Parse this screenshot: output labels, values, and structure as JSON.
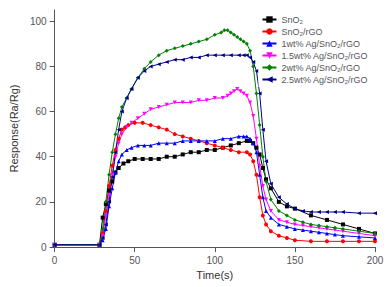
{
  "chart_data": {
    "type": "line",
    "xlabel": "Time(s)",
    "ylabel": "Response(Ra/Rg)",
    "xlim": [
      0,
      200
    ],
    "ylim": [
      0,
      105
    ],
    "xticks": [
      0,
      50,
      100,
      150,
      200
    ],
    "yticks": [
      0,
      20,
      40,
      60,
      80,
      100
    ],
    "grid": false,
    "legend": "upper right",
    "series": [
      {
        "name": "SnO₂",
        "color": "#000000",
        "marker": "square",
        "x": [
          0,
          28,
          30,
          32,
          34,
          36,
          38,
          40,
          43,
          46,
          50,
          55,
          60,
          65,
          70,
          75,
          80,
          85,
          90,
          95,
          100,
          105,
          110,
          115,
          120,
          122,
          124,
          126,
          128,
          130,
          132,
          135,
          140,
          145,
          150,
          160,
          170,
          180,
          190,
          200
        ],
        "values": [
          1,
          1,
          13,
          19,
          25,
          29,
          33,
          35,
          37,
          38,
          39,
          39,
          39,
          39,
          40,
          40,
          41,
          42,
          42,
          43,
          43,
          44,
          45,
          46,
          47,
          47,
          46,
          44,
          41,
          35,
          30,
          26,
          20,
          18,
          17,
          14,
          12,
          10,
          8,
          6
        ]
      },
      {
        "name": "SnO₂/rGO",
        "color": "#ff0000",
        "marker": "circle",
        "x": [
          0,
          28,
          30,
          32,
          34,
          36,
          38,
          40,
          42,
          44,
          46,
          50,
          55,
          60,
          65,
          70,
          75,
          80,
          85,
          90,
          95,
          100,
          105,
          110,
          115,
          120,
          122,
          124,
          126,
          128,
          130,
          132,
          135,
          140,
          145,
          150,
          160,
          170,
          180,
          190,
          200
        ],
        "values": [
          1,
          1,
          6,
          16,
          27,
          36,
          43,
          48,
          52,
          53,
          54,
          55,
          55,
          54,
          53,
          52,
          50,
          49,
          48,
          47,
          46,
          45,
          44,
          43,
          42,
          42,
          41,
          38,
          32,
          22,
          14,
          10,
          7,
          5,
          4,
          3,
          2.5,
          2.5,
          2.5,
          2.5,
          2.5
        ]
      },
      {
        "name": "1wt% Ag/SnO₂/rGO",
        "color": "#0000ff",
        "marker": "triangle-up",
        "x": [
          0,
          28,
          30,
          32,
          34,
          36,
          38,
          40,
          42,
          45,
          48,
          52,
          56,
          60,
          65,
          70,
          75,
          80,
          85,
          90,
          95,
          100,
          105,
          110,
          115,
          118,
          120,
          122,
          124,
          126,
          128,
          130,
          132,
          135,
          140,
          145,
          150,
          155,
          160,
          165,
          170,
          175,
          180,
          190,
          200
        ],
        "values": [
          1,
          1,
          3,
          8,
          18,
          26,
          33,
          38,
          41,
          43,
          44,
          45,
          45,
          45,
          46,
          46,
          46,
          47,
          47,
          47,
          47,
          47,
          48,
          48,
          49,
          49,
          49,
          48,
          46,
          42,
          32,
          22,
          16,
          13,
          10,
          9,
          8,
          7.5,
          7,
          6.5,
          6,
          5.5,
          5,
          4.5,
          4
        ]
      },
      {
        "name": "1.5wt% Ag/SnO₂/rGO",
        "color": "#ff00ff",
        "marker": "triangle-down",
        "x": [
          0,
          28,
          30,
          32,
          34,
          36,
          38,
          40,
          42,
          45,
          48,
          52,
          56,
          60,
          65,
          70,
          75,
          80,
          85,
          90,
          95,
          100,
          105,
          108,
          110,
          112,
          114,
          116,
          118,
          120,
          122,
          124,
          126,
          128,
          130,
          132,
          135,
          140,
          145,
          150,
          155,
          160,
          165,
          170,
          175,
          180,
          190,
          200
        ],
        "values": [
          1,
          1,
          5,
          14,
          23,
          32,
          40,
          46,
          50,
          53,
          55,
          57,
          59,
          61,
          62,
          63,
          64,
          64,
          64,
          65,
          65,
          66,
          66,
          67,
          68,
          69,
          70,
          69,
          68,
          67,
          64,
          58,
          48,
          36,
          27,
          21,
          16,
          12,
          11,
          10,
          9.5,
          9,
          8.5,
          8,
          7.5,
          7,
          6,
          5
        ]
      },
      {
        "name": "2wt% Ag/SnO₂/rGO",
        "color": "#008000",
        "marker": "diamond",
        "x": [
          0,
          28,
          30,
          32,
          34,
          36,
          38,
          40,
          42,
          45,
          48,
          52,
          56,
          60,
          65,
          70,
          75,
          80,
          85,
          90,
          95,
          100,
          104,
          106,
          108,
          110,
          112,
          114,
          116,
          118,
          120,
          122,
          124,
          126,
          128,
          130,
          132,
          135,
          140,
          145,
          150,
          155,
          160,
          165,
          170,
          175,
          180,
          190,
          200
        ],
        "values": [
          1,
          1,
          8,
          20,
          32,
          42,
          50,
          57,
          62,
          66,
          70,
          75,
          79,
          82,
          85,
          87,
          88,
          89,
          90,
          91,
          92,
          94,
          95,
          96,
          96,
          95,
          94,
          93,
          92,
          91,
          90,
          87,
          80,
          68,
          54,
          40,
          29,
          21,
          16,
          14,
          12,
          11,
          10,
          9.5,
          9,
          8.5,
          8,
          7,
          6
        ]
      },
      {
        "name": "2.5wt% Ag/SnO₂/rGO",
        "color": "#00008b",
        "marker": "triangle-left",
        "x": [
          0,
          28,
          30,
          32,
          34,
          36,
          38,
          40,
          42,
          45,
          48,
          52,
          56,
          60,
          65,
          70,
          75,
          80,
          85,
          90,
          95,
          100,
          105,
          110,
          115,
          118,
          120,
          122,
          124,
          126,
          128,
          130,
          132,
          135,
          140,
          145,
          150,
          155,
          160,
          165,
          170,
          175,
          180,
          190,
          200
        ],
        "values": [
          1,
          1,
          4,
          10,
          20,
          31,
          42,
          52,
          60,
          66,
          70,
          75,
          78,
          80,
          81,
          82,
          83,
          83,
          84,
          84,
          85,
          85,
          85,
          85,
          85,
          85,
          85,
          84,
          82,
          78,
          68,
          52,
          38,
          28,
          22,
          19,
          17,
          16,
          15.5,
          15.5,
          15.5,
          15.5,
          15.5,
          15,
          15
        ]
      }
    ]
  }
}
